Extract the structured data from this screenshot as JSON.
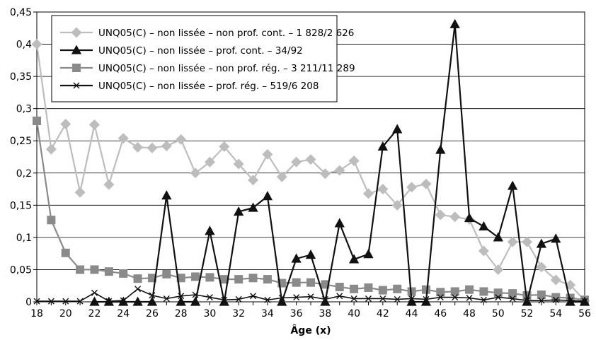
{
  "chart_data": {
    "type": "line",
    "title": "",
    "xlabel": "Âge (x)",
    "ylabel": "",
    "xlim": [
      18,
      56
    ],
    "ylim": [
      0,
      0.45
    ],
    "x_ticks": [
      "18",
      "20",
      "22",
      "24",
      "26",
      "28",
      "30",
      "32",
      "34",
      "36",
      "38",
      "40",
      "42",
      "44",
      "46",
      "48",
      "50",
      "52",
      "54",
      "56"
    ],
    "y_ticks": [
      "0",
      "0,05",
      "0,1",
      "0,15",
      "0,2",
      "0,25",
      "0,3",
      "0,35",
      "0,4",
      "0,45"
    ],
    "grid": "horizontal",
    "legend_position": "top-left",
    "x": [
      18,
      19,
      20,
      21,
      22,
      23,
      24,
      25,
      26,
      27,
      28,
      29,
      30,
      31,
      32,
      33,
      34,
      35,
      36,
      37,
      38,
      39,
      40,
      41,
      42,
      43,
      44,
      45,
      46,
      47,
      48,
      49,
      50,
      51,
      52,
      53,
      54,
      55,
      56
    ],
    "series": [
      {
        "name": "UNQ05(C) – non lissée – non prof. cont. – 1 828/2 626",
        "color": "#bdbdbd",
        "marker": "diamond",
        "values": [
          0.4,
          0.237,
          0.276,
          0.17,
          0.275,
          0.182,
          0.254,
          0.24,
          0.239,
          0.242,
          0.252,
          0.2,
          0.217,
          0.241,
          0.214,
          0.189,
          0.229,
          0.194,
          0.217,
          0.221,
          0.199,
          0.204,
          0.219,
          0.168,
          0.175,
          0.15,
          0.178,
          0.183,
          0.135,
          0.132,
          0.128,
          0.079,
          0.05,
          0.093,
          0.093,
          0.054,
          0.034,
          0.026,
          0.002
        ]
      },
      {
        "name": "UNQ05(C) – non lissée – prof. cont. – 34/92",
        "color": "#111111",
        "marker": "triangle",
        "values": [
          null,
          null,
          null,
          null,
          0,
          0,
          0,
          0,
          0,
          0.165,
          0,
          0,
          0.11,
          0,
          0.14,
          0.146,
          0.164,
          0,
          0.067,
          0.073,
          0,
          0.122,
          0.066,
          0.074,
          0.241,
          0.268,
          0,
          0,
          0.236,
          0.431,
          0.13,
          0.117,
          0.1,
          0.18,
          0,
          0.09,
          0.098,
          0,
          0
        ]
      },
      {
        "name": "UNQ05(C) – non lissée – non prof. rég. – 3 211/11 289",
        "color": "#8a8a8a",
        "marker": "square",
        "values": [
          0.281,
          0.127,
          0.076,
          0.05,
          0.05,
          0.047,
          0.044,
          0.036,
          0.037,
          0.043,
          0.037,
          0.039,
          0.038,
          0.035,
          0.035,
          0.037,
          0.035,
          0.029,
          0.03,
          0.03,
          0.027,
          0.023,
          0.02,
          0.022,
          0.018,
          0.02,
          0.016,
          0.019,
          0.015,
          0.016,
          0.019,
          0.016,
          0.014,
          0.013,
          0.01,
          0.011,
          0.007,
          0.006,
          0.003
        ]
      },
      {
        "name": "UNQ05(C) – non lissée – prof. rég. – 519/6 208",
        "color": "#111111",
        "marker": "x",
        "values": [
          0.001,
          0.001,
          0.001,
          0.001,
          0.014,
          0.001,
          0.002,
          0.02,
          0.01,
          0.005,
          0.009,
          0.011,
          0.007,
          0.003,
          0.004,
          0.009,
          0.003,
          0.006,
          0.007,
          0.008,
          0.004,
          0.009,
          0.005,
          0.005,
          0.005,
          0.004,
          0.005,
          0.004,
          0.007,
          0.007,
          0.006,
          0.003,
          0.007,
          0.005,
          0.002,
          0.002,
          0.003,
          0.002,
          0.001
        ]
      }
    ]
  }
}
